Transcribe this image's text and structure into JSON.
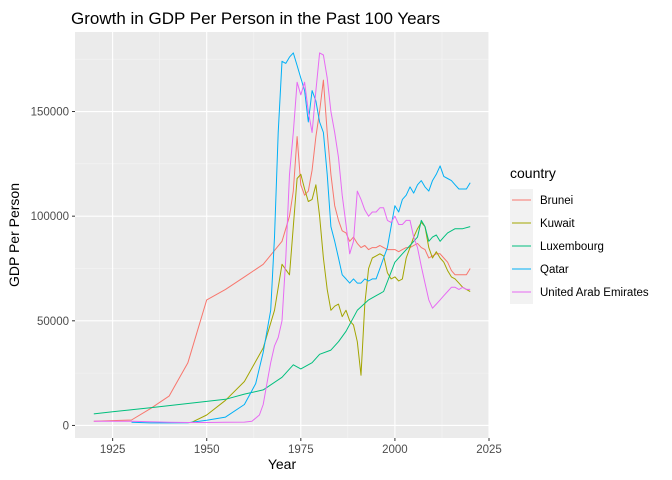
{
  "chart_data": {
    "type": "line",
    "title": "Growth in GDP Per Person in the Past 100 Years",
    "xlabel": "Year",
    "ylabel": "GDP Per Person",
    "xlim": [
      1915,
      2025
    ],
    "ylim": [
      -6000,
      188000
    ],
    "x_ticks": [
      1925,
      1950,
      1975,
      2000,
      2025
    ],
    "x_tick_labels": [
      "1925",
      "1950",
      "1975",
      "2000",
      "2025"
    ],
    "y_ticks": [
      0,
      50000,
      100000,
      150000
    ],
    "y_tick_labels": [
      "0",
      "50000",
      "100000",
      "150000"
    ],
    "grid": true,
    "legend": {
      "title": "country",
      "position": "right"
    },
    "series": [
      {
        "name": "Brunei",
        "color": "#F8766D",
        "points": [
          [
            1920,
            2000
          ],
          [
            1925,
            2300
          ],
          [
            1930,
            2600
          ],
          [
            1935,
            8000
          ],
          [
            1940,
            14000
          ],
          [
            1945,
            30000
          ],
          [
            1950,
            60000
          ],
          [
            1955,
            65000
          ],
          [
            1960,
            71000
          ],
          [
            1965,
            77000
          ],
          [
            1970,
            88000
          ],
          [
            1972,
            100000
          ],
          [
            1973,
            112000
          ],
          [
            1974,
            138000
          ],
          [
            1975,
            115000
          ],
          [
            1976,
            110000
          ],
          [
            1977,
            112000
          ],
          [
            1978,
            122000
          ],
          [
            1979,
            138000
          ],
          [
            1980,
            150000
          ],
          [
            1981,
            165000
          ],
          [
            1982,
            140000
          ],
          [
            1983,
            120000
          ],
          [
            1984,
            105000
          ],
          [
            1985,
            98000
          ],
          [
            1986,
            93000
          ],
          [
            1987,
            92000
          ],
          [
            1988,
            88000
          ],
          [
            1989,
            90000
          ],
          [
            1990,
            87000
          ],
          [
            1991,
            85000
          ],
          [
            1992,
            86000
          ],
          [
            1993,
            84000
          ],
          [
            1994,
            85000
          ],
          [
            1995,
            85000
          ],
          [
            1996,
            86000
          ],
          [
            1997,
            85000
          ],
          [
            1998,
            84000
          ],
          [
            1999,
            84000
          ],
          [
            2000,
            84000
          ],
          [
            2001,
            83000
          ],
          [
            2002,
            84000
          ],
          [
            2003,
            85000
          ],
          [
            2004,
            85000
          ],
          [
            2005,
            86000
          ],
          [
            2006,
            87000
          ],
          [
            2007,
            85000
          ],
          [
            2008,
            84000
          ],
          [
            2009,
            80000
          ],
          [
            2010,
            81000
          ],
          [
            2011,
            82000
          ],
          [
            2012,
            82000
          ],
          [
            2013,
            80000
          ],
          [
            2014,
            78000
          ],
          [
            2015,
            74000
          ],
          [
            2016,
            72000
          ],
          [
            2017,
            72000
          ],
          [
            2018,
            72000
          ],
          [
            2019,
            72000
          ],
          [
            2020,
            75000
          ]
        ]
      },
      {
        "name": "Kuwait",
        "color": "#A3A500",
        "points": [
          [
            1946,
            1500
          ],
          [
            1950,
            5000
          ],
          [
            1955,
            12000
          ],
          [
            1960,
            21000
          ],
          [
            1965,
            37000
          ],
          [
            1968,
            55000
          ],
          [
            1970,
            77000
          ],
          [
            1972,
            72000
          ],
          [
            1973,
            95000
          ],
          [
            1974,
            118000
          ],
          [
            1975,
            120000
          ],
          [
            1976,
            113000
          ],
          [
            1977,
            107000
          ],
          [
            1978,
            108000
          ],
          [
            1979,
            115000
          ],
          [
            1980,
            100000
          ],
          [
            1981,
            80000
          ],
          [
            1982,
            65000
          ],
          [
            1983,
            55000
          ],
          [
            1984,
            57000
          ],
          [
            1985,
            58000
          ],
          [
            1986,
            52000
          ],
          [
            1987,
            55000
          ],
          [
            1988,
            50000
          ],
          [
            1989,
            48000
          ],
          [
            1990,
            40000
          ],
          [
            1991,
            24000
          ],
          [
            1992,
            58000
          ],
          [
            1993,
            75000
          ],
          [
            1994,
            80000
          ],
          [
            1995,
            81000
          ],
          [
            1996,
            82000
          ],
          [
            1997,
            81000
          ],
          [
            1998,
            73000
          ],
          [
            1999,
            70000
          ],
          [
            2000,
            71000
          ],
          [
            2001,
            69000
          ],
          [
            2002,
            70000
          ],
          [
            2003,
            80000
          ],
          [
            2004,
            85000
          ],
          [
            2005,
            90000
          ],
          [
            2006,
            94000
          ],
          [
            2007,
            97000
          ],
          [
            2008,
            95000
          ],
          [
            2009,
            85000
          ],
          [
            2010,
            80000
          ],
          [
            2011,
            83000
          ],
          [
            2012,
            80000
          ],
          [
            2013,
            78000
          ],
          [
            2014,
            74000
          ],
          [
            2015,
            71000
          ],
          [
            2016,
            70000
          ],
          [
            2017,
            68000
          ],
          [
            2018,
            66000
          ],
          [
            2019,
            65000
          ],
          [
            2020,
            64000
          ]
        ]
      },
      {
        "name": "Luxembourg",
        "color": "#00BF7D",
        "points": [
          [
            1920,
            5500
          ],
          [
            1925,
            6500
          ],
          [
            1930,
            7500
          ],
          [
            1935,
            8500
          ],
          [
            1940,
            9500
          ],
          [
            1945,
            10500
          ],
          [
            1950,
            11500
          ],
          [
            1955,
            12500
          ],
          [
            1960,
            15000
          ],
          [
            1965,
            17000
          ],
          [
            1970,
            23000
          ],
          [
            1973,
            29000
          ],
          [
            1975,
            27000
          ],
          [
            1978,
            30000
          ],
          [
            1980,
            34000
          ],
          [
            1983,
            36000
          ],
          [
            1985,
            40000
          ],
          [
            1987,
            45000
          ],
          [
            1990,
            55000
          ],
          [
            1993,
            60000
          ],
          [
            1995,
            62000
          ],
          [
            1997,
            64000
          ],
          [
            2000,
            78000
          ],
          [
            2002,
            82000
          ],
          [
            2004,
            86000
          ],
          [
            2006,
            90000
          ],
          [
            2007,
            98000
          ],
          [
            2008,
            95000
          ],
          [
            2009,
            88000
          ],
          [
            2010,
            90000
          ],
          [
            2011,
            91000
          ],
          [
            2012,
            88000
          ],
          [
            2013,
            90000
          ],
          [
            2014,
            92000
          ],
          [
            2016,
            94000
          ],
          [
            2018,
            94000
          ],
          [
            2020,
            95000
          ]
        ]
      },
      {
        "name": "Qatar",
        "color": "#00B0F6",
        "points": [
          [
            1930,
            1500
          ],
          [
            1935,
            1200
          ],
          [
            1940,
            1200
          ],
          [
            1945,
            1300
          ],
          [
            1950,
            2500
          ],
          [
            1955,
            4000
          ],
          [
            1960,
            10000
          ],
          [
            1963,
            20000
          ],
          [
            1965,
            35000
          ],
          [
            1967,
            55000
          ],
          [
            1968,
            90000
          ],
          [
            1969,
            140000
          ],
          [
            1970,
            174000
          ],
          [
            1971,
            173000
          ],
          [
            1972,
            176000
          ],
          [
            1973,
            178000
          ],
          [
            1974,
            172000
          ],
          [
            1975,
            166000
          ],
          [
            1976,
            160000
          ],
          [
            1977,
            145000
          ],
          [
            1978,
            160000
          ],
          [
            1979,
            155000
          ],
          [
            1980,
            145000
          ],
          [
            1981,
            140000
          ],
          [
            1982,
            120000
          ],
          [
            1983,
            95000
          ],
          [
            1984,
            88000
          ],
          [
            1985,
            80000
          ],
          [
            1986,
            72000
          ],
          [
            1987,
            70000
          ],
          [
            1988,
            68000
          ],
          [
            1989,
            70000
          ],
          [
            1990,
            68000
          ],
          [
            1991,
            68000
          ],
          [
            1992,
            70000
          ],
          [
            1993,
            69000
          ],
          [
            1994,
            70000
          ],
          [
            1995,
            70000
          ],
          [
            1996,
            75000
          ],
          [
            1997,
            80000
          ],
          [
            1998,
            85000
          ],
          [
            1999,
            95000
          ],
          [
            2000,
            105000
          ],
          [
            2001,
            102000
          ],
          [
            2002,
            108000
          ],
          [
            2003,
            110000
          ],
          [
            2004,
            114000
          ],
          [
            2005,
            111000
          ],
          [
            2006,
            115000
          ],
          [
            2007,
            117000
          ],
          [
            2008,
            114000
          ],
          [
            2009,
            112000
          ],
          [
            2010,
            117000
          ],
          [
            2011,
            120000
          ],
          [
            2012,
            124000
          ],
          [
            2013,
            119000
          ],
          [
            2014,
            118000
          ],
          [
            2015,
            117000
          ],
          [
            2016,
            115000
          ],
          [
            2017,
            113000
          ],
          [
            2018,
            113000
          ],
          [
            2019,
            113000
          ],
          [
            2020,
            116000
          ]
        ]
      },
      {
        "name": "United Arab Emirates",
        "color": "#E76BF3",
        "points": [
          [
            1920,
            2000
          ],
          [
            1930,
            2000
          ],
          [
            1935,
            1800
          ],
          [
            1940,
            1500
          ],
          [
            1945,
            1400
          ],
          [
            1950,
            1400
          ],
          [
            1955,
            1500
          ],
          [
            1960,
            1600
          ],
          [
            1962,
            2000
          ],
          [
            1964,
            5000
          ],
          [
            1965,
            10000
          ],
          [
            1966,
            20000
          ],
          [
            1967,
            30000
          ],
          [
            1968,
            38000
          ],
          [
            1969,
            42000
          ],
          [
            1970,
            50000
          ],
          [
            1971,
            80000
          ],
          [
            1972,
            120000
          ],
          [
            1973,
            140000
          ],
          [
            1974,
            164000
          ],
          [
            1975,
            158000
          ],
          [
            1976,
            164000
          ],
          [
            1977,
            150000
          ],
          [
            1978,
            140000
          ],
          [
            1979,
            160000
          ],
          [
            1980,
            178000
          ],
          [
            1981,
            177000
          ],
          [
            1982,
            166000
          ],
          [
            1983,
            150000
          ],
          [
            1984,
            140000
          ],
          [
            1985,
            128000
          ],
          [
            1986,
            110000
          ],
          [
            1987,
            96000
          ],
          [
            1988,
            82000
          ],
          [
            1989,
            88000
          ],
          [
            1990,
            112000
          ],
          [
            1991,
            108000
          ],
          [
            1992,
            103000
          ],
          [
            1993,
            100000
          ],
          [
            1994,
            102000
          ],
          [
            1995,
            102000
          ],
          [
            1996,
            104000
          ],
          [
            1997,
            104000
          ],
          [
            1998,
            98000
          ],
          [
            1999,
            97000
          ],
          [
            2000,
            100000
          ],
          [
            2001,
            96000
          ],
          [
            2002,
            96000
          ],
          [
            2003,
            98000
          ],
          [
            2004,
            98000
          ],
          [
            2005,
            90000
          ],
          [
            2006,
            85000
          ],
          [
            2007,
            76000
          ],
          [
            2008,
            68000
          ],
          [
            2009,
            60000
          ],
          [
            2010,
            56000
          ],
          [
            2011,
            58000
          ],
          [
            2012,
            60000
          ],
          [
            2013,
            62000
          ],
          [
            2014,
            64000
          ],
          [
            2015,
            66000
          ],
          [
            2016,
            66000
          ],
          [
            2017,
            65000
          ],
          [
            2018,
            66000
          ],
          [
            2019,
            65000
          ],
          [
            2020,
            65000
          ]
        ]
      }
    ]
  }
}
